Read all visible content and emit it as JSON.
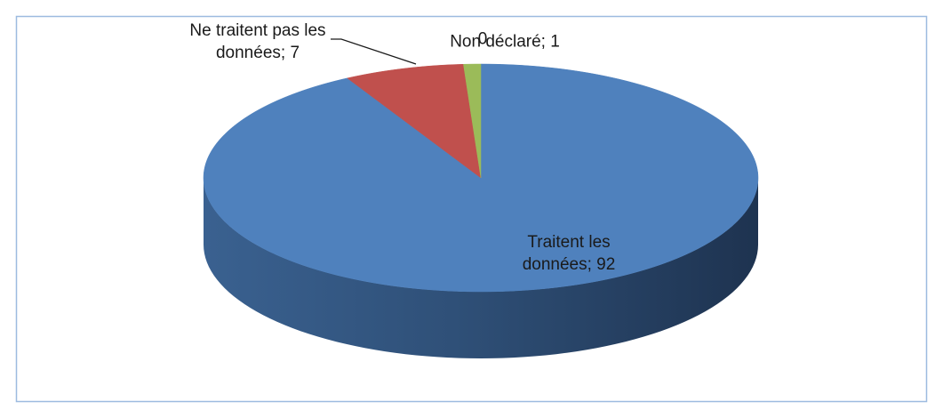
{
  "chart_data": {
    "type": "pie",
    "categories": [
      "Traitent les données",
      "Ne traitent pas les données",
      "Non déclaré",
      null
    ],
    "values": [
      92,
      7,
      1,
      0
    ],
    "value_labels": [
      "Traitent les données; 92",
      "Ne traitent pas les données; 7",
      "Non déclaré; 1",
      "0"
    ],
    "colors": [
      "#4f81bd",
      "#c0504d",
      "#9bbb59",
      "#8064a2"
    ],
    "start_angle": 0,
    "direction": "clockwise"
  }
}
